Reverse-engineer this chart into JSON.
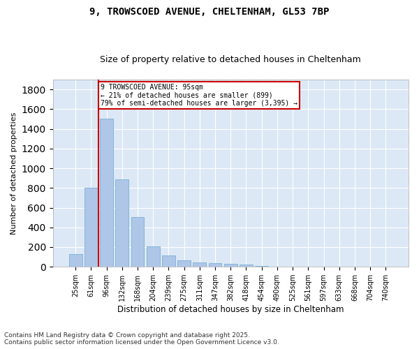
{
  "title1": "9, TROWSCOED AVENUE, CHELTENHAM, GL53 7BP",
  "title2": "Size of property relative to detached houses in Cheltenham",
  "xlabel": "Distribution of detached houses by size in Cheltenham",
  "ylabel": "Number of detached properties",
  "categories": [
    "25sqm",
    "61sqm",
    "96sqm",
    "132sqm",
    "168sqm",
    "204sqm",
    "239sqm",
    "275sqm",
    "311sqm",
    "347sqm",
    "382sqm",
    "418sqm",
    "454sqm",
    "490sqm",
    "525sqm",
    "561sqm",
    "597sqm",
    "633sqm",
    "668sqm",
    "704sqm",
    "740sqm"
  ],
  "values": [
    130,
    805,
    1500,
    890,
    505,
    210,
    115,
    65,
    45,
    35,
    30,
    25,
    10,
    5,
    3,
    2,
    1,
    1,
    1,
    0,
    0
  ],
  "bar_color": "#aec6e8",
  "bar_edge_color": "#7bafd4",
  "annotation_title": "9 TROWSCOED AVENUE: 95sqm",
  "annotation_line1": "← 21% of detached houses are smaller (899)",
  "annotation_line2": "79% of semi-detached houses are larger (3,395) →",
  "annotation_box_color": "#ffffff",
  "annotation_box_edge": "#cc0000",
  "vline_color": "#cc0000",
  "ylim": [
    0,
    1900
  ],
  "yticks": [
    0,
    200,
    400,
    600,
    800,
    1000,
    1200,
    1400,
    1600,
    1800
  ],
  "footnote1": "Contains HM Land Registry data © Crown copyright and database right 2025.",
  "footnote2": "Contains public sector information licensed under the Open Government Licence v3.0.",
  "bg_color": "#dce8f5",
  "fig_bg_color": "#ffffff",
  "title1_fontsize": 10,
  "title2_fontsize": 9,
  "xlabel_fontsize": 8.5,
  "ylabel_fontsize": 8,
  "tick_fontsize": 7,
  "footnote_fontsize": 6.5
}
